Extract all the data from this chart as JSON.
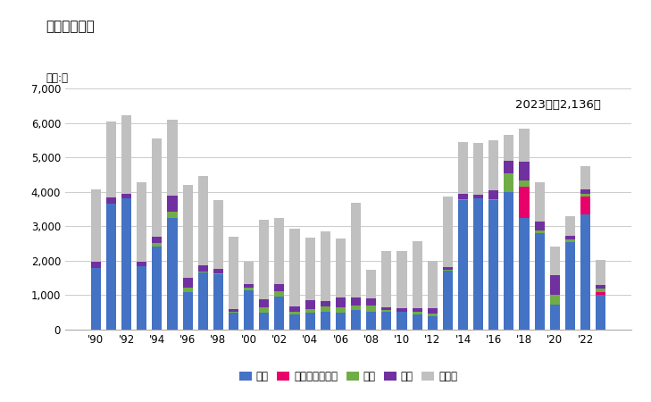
{
  "title": "輸出量の推移",
  "unit_label": "単位:台",
  "annotation": "2023年：2,136台",
  "years": [
    1990,
    1991,
    1992,
    1993,
    1994,
    1995,
    1996,
    1997,
    1998,
    1999,
    2000,
    2001,
    2002,
    2003,
    2004,
    2005,
    2006,
    2007,
    2008,
    2009,
    2010,
    2011,
    2012,
    2013,
    2014,
    2015,
    2016,
    2017,
    2018,
    2019,
    2020,
    2021,
    2022,
    2023
  ],
  "usa": [
    1800,
    3650,
    3800,
    1850,
    2400,
    3250,
    1100,
    1650,
    1600,
    480,
    1150,
    480,
    950,
    430,
    480,
    520,
    480,
    570,
    530,
    520,
    530,
    430,
    380,
    1700,
    3750,
    3800,
    3750,
    4000,
    3250,
    2800,
    720,
    2550,
    3350,
    1000
  ],
  "luxembourg": [
    0,
    0,
    0,
    0,
    0,
    0,
    0,
    0,
    0,
    0,
    0,
    0,
    0,
    0,
    0,
    0,
    0,
    0,
    0,
    0,
    0,
    0,
    0,
    0,
    0,
    0,
    0,
    0,
    900,
    0,
    0,
    0,
    520,
    100
  ],
  "china": [
    0,
    0,
    0,
    0,
    120,
    180,
    130,
    40,
    40,
    40,
    80,
    160,
    160,
    80,
    120,
    160,
    160,
    120,
    160,
    40,
    0,
    80,
    80,
    40,
    40,
    0,
    40,
    550,
    180,
    80,
    300,
    80,
    80,
    80
  ],
  "korea": [
    180,
    180,
    130,
    130,
    180,
    450,
    270,
    180,
    130,
    80,
    80,
    250,
    220,
    160,
    260,
    160,
    300,
    250,
    220,
    80,
    80,
    120,
    160,
    80,
    160,
    120,
    250,
    350,
    550,
    250,
    550,
    80,
    120,
    120
  ],
  "other": [
    2100,
    2200,
    2300,
    2300,
    2850,
    2200,
    2700,
    2600,
    2000,
    2100,
    650,
    2300,
    1900,
    2250,
    1800,
    2000,
    1700,
    2750,
    820,
    1650,
    1680,
    1930,
    1380,
    2050,
    1500,
    1500,
    1450,
    750,
    950,
    1150,
    830,
    570,
    680,
    730
  ],
  "colors": {
    "usa": "#4472C4",
    "luxembourg": "#E8006B",
    "china": "#70AD47",
    "korea": "#7030A0",
    "other": "#C0C0C0"
  },
  "legend_labels": [
    "米国",
    "ルクセンブルク",
    "中国",
    "韓国",
    "その他"
  ],
  "ylim": [
    0,
    7000
  ],
  "yticks": [
    0,
    1000,
    2000,
    3000,
    4000,
    5000,
    6000,
    7000
  ],
  "background_color": "#ffffff",
  "grid_color": "#cccccc"
}
